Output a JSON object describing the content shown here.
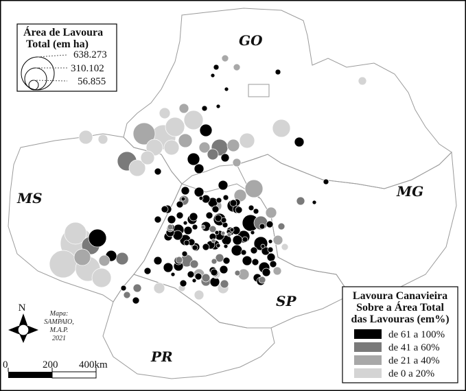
{
  "state_labels": {
    "go": "GO",
    "ms": "MS",
    "mg": "MG",
    "sp": "SP",
    "pr": "PR"
  },
  "size_legend": {
    "title_line1": "Área de Lavoura",
    "title_line2": "Total (em ha)",
    "values": [
      "638.273",
      "310.102",
      "56.855"
    ]
  },
  "class_legend": {
    "title_line1": "Lavoura Canavieira",
    "title_line2": "Sobre a Área Total",
    "title_line3": "das Lavouras (em%)",
    "classes": [
      {
        "label": "de 61 a 100%",
        "color": "#000000"
      },
      {
        "label": "de 41 a 60%",
        "color": "#7a7a7a"
      },
      {
        "label": "de 21 a 40%",
        "color": "#a8a8a8"
      },
      {
        "label": "de 0 a 20%",
        "color": "#d4d4d4"
      }
    ]
  },
  "credit": {
    "line1": "Mapa:",
    "line2": "SAMPAIO,",
    "line3": "M.A.P.",
    "line4": "2021"
  },
  "north": "N",
  "scale_bar": {
    "labels": [
      "0",
      "200",
      "400km"
    ]
  }
}
